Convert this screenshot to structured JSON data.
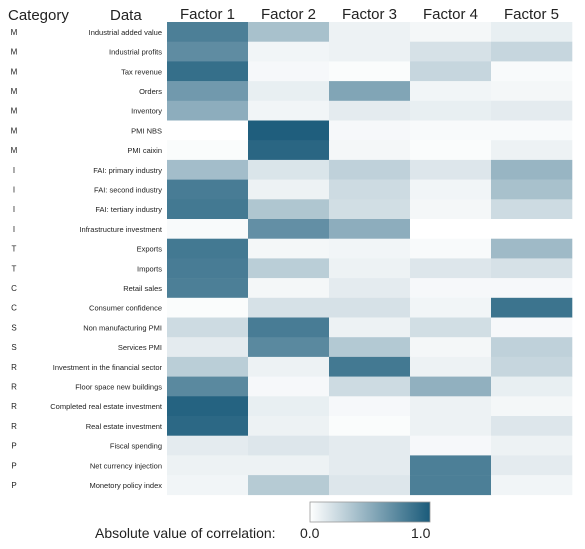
{
  "chart_data": {
    "type": "heatmap",
    "header_category": "Category",
    "header_data": "Data",
    "factors": [
      "Factor 1",
      "Factor 2",
      "Factor 3",
      "Factor 4",
      "Factor 5"
    ],
    "rows": [
      {
        "category": "M",
        "label": "Industrial added value",
        "values": [
          0.78,
          0.38,
          0.08,
          0.05,
          0.1
        ]
      },
      {
        "category": "M",
        "label": "Industrial profits",
        "values": [
          0.7,
          0.06,
          0.08,
          0.18,
          0.25
        ]
      },
      {
        "category": "M",
        "label": "Tax revenue",
        "values": [
          0.88,
          0.04,
          0.02,
          0.25,
          0.03
        ]
      },
      {
        "category": "M",
        "label": "Orders",
        "values": [
          0.62,
          0.1,
          0.55,
          0.06,
          0.05
        ]
      },
      {
        "category": "M",
        "label": "Inventory",
        "values": [
          0.5,
          0.06,
          0.12,
          0.1,
          0.12
        ]
      },
      {
        "category": "M",
        "label": "PMI NBS",
        "values": [
          0.0,
          0.98,
          0.04,
          0.03,
          0.03
        ]
      },
      {
        "category": "M",
        "label": "PMI caixin",
        "values": [
          0.02,
          0.93,
          0.05,
          0.02,
          0.08
        ]
      },
      {
        "category": "I",
        "label": "FAI: primary industry",
        "values": [
          0.4,
          0.16,
          0.28,
          0.15,
          0.45
        ]
      },
      {
        "category": "I",
        "label": "FAI: second industry",
        "values": [
          0.8,
          0.08,
          0.22,
          0.06,
          0.38
        ]
      },
      {
        "category": "I",
        "label": "FAI: tertiary industry",
        "values": [
          0.82,
          0.35,
          0.2,
          0.05,
          0.22
        ]
      },
      {
        "category": "I",
        "label": "Infrastructure investment",
        "values": [
          0.03,
          0.68,
          0.5,
          0.0,
          0.0
        ]
      },
      {
        "category": "T",
        "label": "Exports",
        "values": [
          0.82,
          0.05,
          0.06,
          0.03,
          0.42
        ]
      },
      {
        "category": "T",
        "label": "Imports",
        "values": [
          0.8,
          0.3,
          0.08,
          0.15,
          0.18
        ]
      },
      {
        "category": "C",
        "label": "Retail sales",
        "values": [
          0.78,
          0.05,
          0.12,
          0.04,
          0.04
        ]
      },
      {
        "category": "C",
        "label": "Consumer confidence",
        "values": [
          0.02,
          0.18,
          0.18,
          0.06,
          0.85
        ]
      },
      {
        "category": "S",
        "label": "Non manufacturing PMI",
        "values": [
          0.22,
          0.8,
          0.08,
          0.2,
          0.04
        ]
      },
      {
        "category": "S",
        "label": "Services PMI",
        "values": [
          0.12,
          0.72,
          0.33,
          0.05,
          0.28
        ]
      },
      {
        "category": "R",
        "label": "Investment in the financial sector",
        "values": [
          0.3,
          0.08,
          0.82,
          0.08,
          0.25
        ]
      },
      {
        "category": "R",
        "label": "Floor space new buildings",
        "values": [
          0.72,
          0.04,
          0.22,
          0.48,
          0.1
        ]
      },
      {
        "category": "R",
        "label": "Completed real estate investment",
        "values": [
          0.95,
          0.1,
          0.04,
          0.08,
          0.05
        ]
      },
      {
        "category": "R",
        "label": "Real estate investment",
        "values": [
          0.92,
          0.08,
          0.02,
          0.08,
          0.15
        ]
      },
      {
        "category": "P",
        "label": "Fiscal spending",
        "values": [
          0.12,
          0.15,
          0.12,
          0.04,
          0.08
        ]
      },
      {
        "category": "P",
        "label": "Net currency injection",
        "values": [
          0.08,
          0.08,
          0.12,
          0.78,
          0.12
        ]
      },
      {
        "category": "P",
        "label": "Monetory policy index",
        "values": [
          0.06,
          0.32,
          0.15,
          0.78,
          0.06
        ]
      }
    ],
    "legend": {
      "title": "Absolute value of correlation:",
      "min_label": "0.0",
      "max_label": "1.0"
    },
    "color_low": "#ffffff",
    "color_high": "#1a5b7a",
    "vrange": [
      0,
      1
    ]
  }
}
